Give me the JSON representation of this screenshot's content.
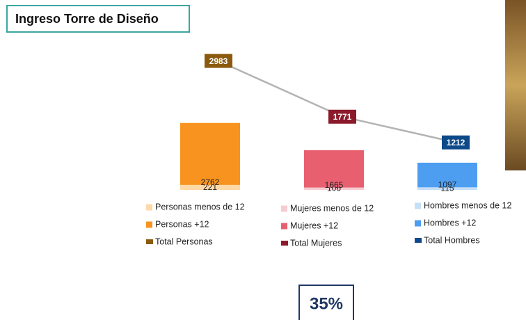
{
  "title": "Ingreso Torre de Diseño",
  "kpi": "35%",
  "chart_data": {
    "type": "bar",
    "stacked": true,
    "categories": [
      null,
      null,
      null
    ],
    "ylim": [
      0,
      6600
    ],
    "y2lim": [
      180,
      3400
    ],
    "series": [
      {
        "name": "Personas menos de 12",
        "color": "#fdd9a8",
        "values": [
          221,
          null,
          null
        ]
      },
      {
        "name": "Personas +12",
        "color": "#f7931e",
        "values": [
          2762,
          null,
          null
        ]
      },
      {
        "name": "Mujeres menos de 12",
        "color": "#f6ccd3",
        "values": [
          null,
          106,
          null
        ]
      },
      {
        "name": "Mujeres +12",
        "color": "#e8606f",
        "values": [
          null,
          1665,
          null
        ]
      },
      {
        "name": "Hombres menos de 12",
        "color": "#c5dff8",
        "values": [
          null,
          null,
          115
        ]
      },
      {
        "name": "Hombres +12",
        "color": "#4d9ef0",
        "values": [
          null,
          null,
          1097
        ]
      }
    ],
    "line": {
      "type": "line",
      "axis": "y2",
      "color": "#b3b3b3",
      "values": [
        2983,
        1771,
        1212
      ],
      "labels": [
        "Total Personas",
        "Total Mujeres",
        "Total Hombres"
      ],
      "colors": [
        "#8b5a0f",
        "#8b1a2b",
        "#0e4a8a"
      ]
    }
  }
}
